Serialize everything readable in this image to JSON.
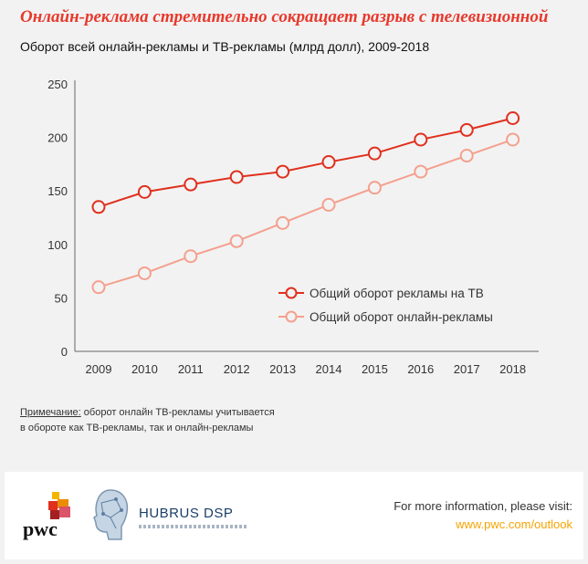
{
  "header": {
    "title": "Онлайн-реклама стремительно сокращает разрыв с телевизионной",
    "subtitle": "Оборот всей онлайн-рекламы и ТВ-рекламы (млрд долл), 2009-2018"
  },
  "chart_data": {
    "type": "line",
    "x": [
      "2009",
      "2010",
      "2011",
      "2012",
      "2013",
      "2014",
      "2015",
      "2016",
      "2017",
      "2018"
    ],
    "ylim": [
      0,
      250
    ],
    "yticks": [
      0,
      50,
      100,
      150,
      200,
      250
    ],
    "grid": false,
    "legend_position": "center-right",
    "series": [
      {
        "name": "Общий оборот рекламы на ТВ",
        "color": "#e0301e",
        "values": [
          135,
          149,
          156,
          163,
          168,
          177,
          185,
          198,
          207,
          218
        ]
      },
      {
        "name": "Общий оборот онлайн-рекламы",
        "color": "#f4a08e",
        "values": [
          60,
          73,
          89,
          103,
          120,
          137,
          153,
          168,
          183,
          198
        ]
      }
    ]
  },
  "note": {
    "label": "Примечание:",
    "line1": " оборот онлайн ТВ-рекламы учитывается",
    "line2": "в обороте как ТВ-рекламы, так и онлайн-рекламы"
  },
  "footer": {
    "pwc_logo_text": "pwc",
    "hubrus_logo_text": "HUBRUS DSP",
    "more_info": "For more information, please visit:",
    "url": "www.pwc.com/outlook",
    "url_color": "#f5a300"
  }
}
